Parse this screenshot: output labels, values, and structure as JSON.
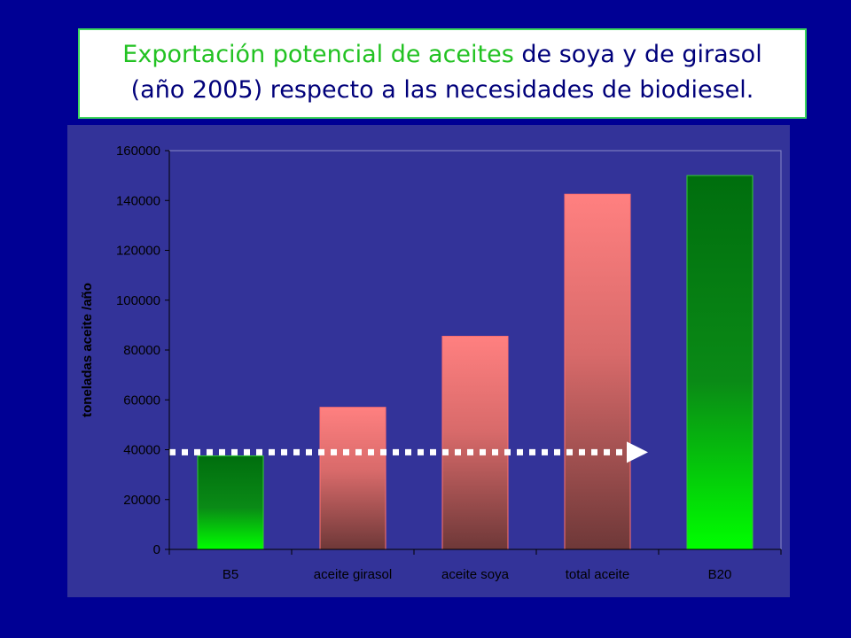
{
  "title": {
    "part1": "Exportación potencial de aceites",
    "part2": " de soya y de girasol",
    "line2": "(año 2005) respecto a las necesidades de biodiesel."
  },
  "colors": {
    "background": "#000094",
    "plot_bg": "#333399",
    "green_top": "#006e0e",
    "green_bottom": "#00ff00",
    "pink_top": "#ff8080",
    "pink_bottom": "#6e3838",
    "arrow": "#ffffff"
  },
  "chart_data": {
    "type": "bar",
    "categories": [
      "B5",
      "aceite girasol",
      "aceite soya",
      "total aceite",
      "B20"
    ],
    "values": [
      37500,
      57000,
      85500,
      142500,
      150000
    ],
    "bar_styles": [
      "green",
      "pink",
      "pink",
      "pink",
      "green"
    ],
    "xlabel": "",
    "ylabel": "toneladas aceite /año",
    "ylim": [
      0,
      160000
    ],
    "yticks": [
      "0",
      "20000",
      "40000",
      "60000",
      "80000",
      "100000",
      "120000",
      "140000",
      "160000"
    ],
    "grid": false,
    "annotations": [
      {
        "type": "dashed-arrow",
        "y": 39000,
        "from_category": "B5",
        "to_category": "total aceite"
      }
    ]
  }
}
